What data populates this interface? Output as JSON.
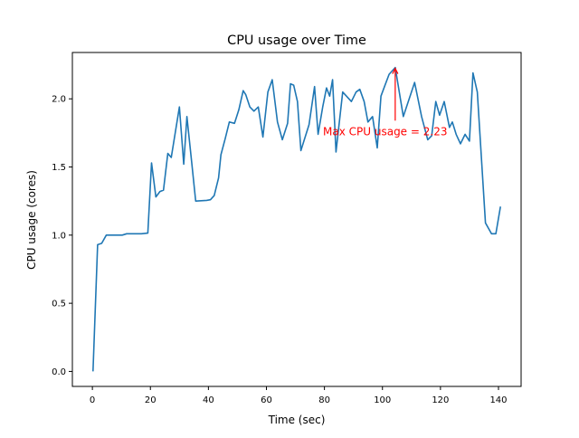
{
  "chart_data": {
    "type": "line",
    "title": "CPU usage over Time",
    "xlabel": "Time (sec)",
    "ylabel": "CPU usage (cores)",
    "xlim": [
      -6.9,
      147.8
    ],
    "ylim": [
      -0.11,
      2.34
    ],
    "xticks": [
      0,
      20,
      40,
      60,
      80,
      100,
      120,
      140
    ],
    "xtick_labels": [
      "0",
      "20",
      "40",
      "60",
      "80",
      "100",
      "120",
      "140"
    ],
    "yticks": [
      0.0,
      0.5,
      1.0,
      1.5,
      2.0
    ],
    "ytick_labels": [
      "0.0",
      "0.5",
      "1.0",
      "1.5",
      "2.0"
    ],
    "grid": false,
    "line_color": "#1f77b4",
    "series": [
      {
        "x": [
          0.2,
          1.8,
          3.2,
          4.8,
          6.1,
          10.3,
          11.8,
          16.9,
          19.1,
          20.4,
          21.9,
          23.3,
          24.5,
          26.0,
          27.2,
          30.0,
          31.5,
          32.6,
          34.2,
          35.6,
          39.4,
          40.7,
          42.0,
          43.5,
          44.3,
          45.8,
          47.2,
          49.0,
          50.5,
          52.0,
          52.9,
          54.3,
          55.7,
          57.2,
          58.8,
          60.5,
          62.0,
          63.8,
          65.5,
          67.3,
          68.3,
          69.4,
          70.7,
          71.9,
          74.7,
          76.6,
          77.8,
          79.4,
          80.7,
          81.8,
          82.8,
          84.0,
          86.3,
          89.3,
          90.9,
          92.2,
          93.7,
          95.0,
          96.6,
          98.2,
          99.5,
          100.7,
          102.3,
          104.4,
          107.2,
          111.1,
          113.5,
          115.6,
          117.0,
          118.4,
          119.7,
          121.3,
          123.1,
          124.1,
          125.4,
          126.9,
          128.5,
          130.0,
          131.2,
          132.7,
          135.5,
          137.6,
          139.1,
          140.7
        ],
        "y": [
          0.0,
          0.93,
          0.94,
          1.0,
          1.0,
          1.0,
          1.01,
          1.01,
          1.015,
          1.53,
          1.28,
          1.32,
          1.33,
          1.6,
          1.57,
          1.94,
          1.52,
          1.87,
          1.54,
          1.25,
          1.255,
          1.26,
          1.29,
          1.42,
          1.59,
          1.71,
          1.83,
          1.82,
          1.92,
          2.06,
          2.03,
          1.94,
          1.91,
          1.94,
          1.72,
          2.05,
          2.14,
          1.83,
          1.7,
          1.82,
          2.11,
          2.1,
          1.98,
          1.62,
          1.81,
          2.09,
          1.74,
          1.94,
          2.08,
          2.02,
          2.14,
          1.61,
          2.05,
          1.98,
          2.05,
          2.07,
          1.98,
          1.83,
          1.87,
          1.64,
          2.02,
          2.09,
          2.18,
          2.23,
          1.87,
          2.12,
          1.87,
          1.7,
          1.73,
          1.98,
          1.88,
          1.98,
          1.79,
          1.83,
          1.74,
          1.67,
          1.74,
          1.69,
          2.19,
          2.05,
          1.09,
          1.01,
          1.01,
          1.21
        ]
      }
    ],
    "annotation": {
      "text": "Max CPU usage = 2.23",
      "color": "#ff0000",
      "point": [
        104.4,
        2.23
      ],
      "text_position": [
        79.5,
        1.76
      ],
      "arrow_from": [
        104.4,
        1.84
      ]
    }
  }
}
